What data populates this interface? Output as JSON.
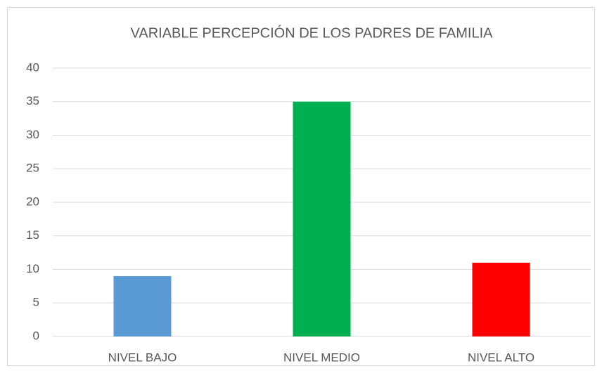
{
  "chart_data": {
    "type": "bar",
    "title": "VARIABLE PERCEPCIÓN DE LOS PADRES DE FAMILIA",
    "categories": [
      "NIVEL BAJO",
      "NIVEL MEDIO",
      "NIVEL ALTO"
    ],
    "values": [
      9,
      35,
      11
    ],
    "colors": [
      "#5b9bd5",
      "#00b050",
      "#ff0000"
    ],
    "ylim": [
      0,
      40
    ],
    "yticks": [
      0,
      5,
      10,
      15,
      20,
      25,
      30,
      35,
      40
    ],
    "grid": true
  }
}
